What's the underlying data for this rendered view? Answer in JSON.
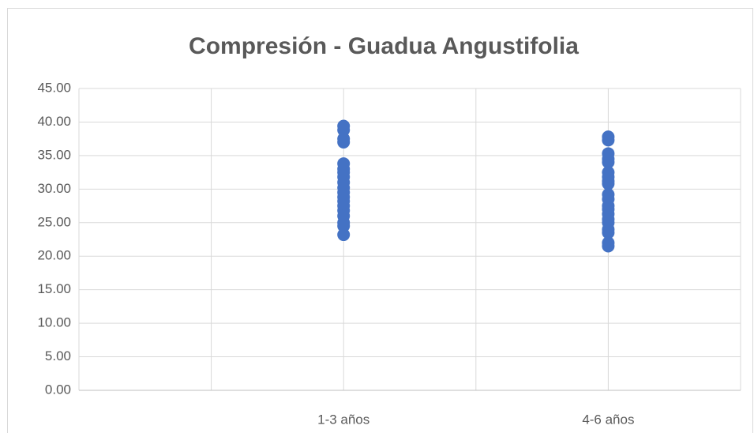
{
  "chart_data": {
    "type": "scatter",
    "title": "Compresión - Guadua Angustifolia",
    "series": [
      {
        "color": "#4472c4",
        "x": [
          2,
          2,
          2,
          2,
          2,
          2,
          2,
          2,
          2,
          2,
          2,
          2,
          2,
          2,
          2,
          2,
          2,
          2,
          2
        ],
        "values": [
          39.4,
          38.8,
          37.5,
          37.0,
          33.8,
          33.0,
          32.5,
          31.8,
          31.0,
          30.2,
          29.5,
          28.8,
          28.2,
          27.5,
          26.8,
          26.0,
          25.0,
          24.5,
          23.2
        ]
      },
      {
        "color": "#4472c4",
        "x": [
          4,
          4,
          4,
          4,
          4,
          4,
          4,
          4,
          4,
          4,
          4,
          4,
          4,
          4,
          4,
          4,
          4,
          4,
          4,
          4
        ],
        "values": [
          37.8,
          37.3,
          35.3,
          34.5,
          34.0,
          32.5,
          31.8,
          31.2,
          30.8,
          29.2,
          28.5,
          27.5,
          27.0,
          26.3,
          25.5,
          25.0,
          24.0,
          23.5,
          22.0,
          21.5
        ]
      }
    ],
    "xlim": [
      0,
      5
    ],
    "xticks": [
      {
        "value": 2,
        "label": "1-3 años"
      },
      {
        "value": 4,
        "label": "4-6 años"
      }
    ],
    "xgrid": [
      0,
      1,
      2,
      3,
      4,
      5
    ],
    "ylim": [
      0,
      45
    ],
    "yticks": [
      {
        "value": 0,
        "label": "0.00"
      },
      {
        "value": 5,
        "label": "5.00"
      },
      {
        "value": 10,
        "label": "10.00"
      },
      {
        "value": 15,
        "label": "15.00"
      },
      {
        "value": 20,
        "label": "20.00"
      },
      {
        "value": 25,
        "label": "25.00"
      },
      {
        "value": 30,
        "label": "30.00"
      },
      {
        "value": 35,
        "label": "35.00"
      },
      {
        "value": 40,
        "label": "40.00"
      },
      {
        "value": 45,
        "label": "45.00"
      }
    ],
    "grid": true
  }
}
